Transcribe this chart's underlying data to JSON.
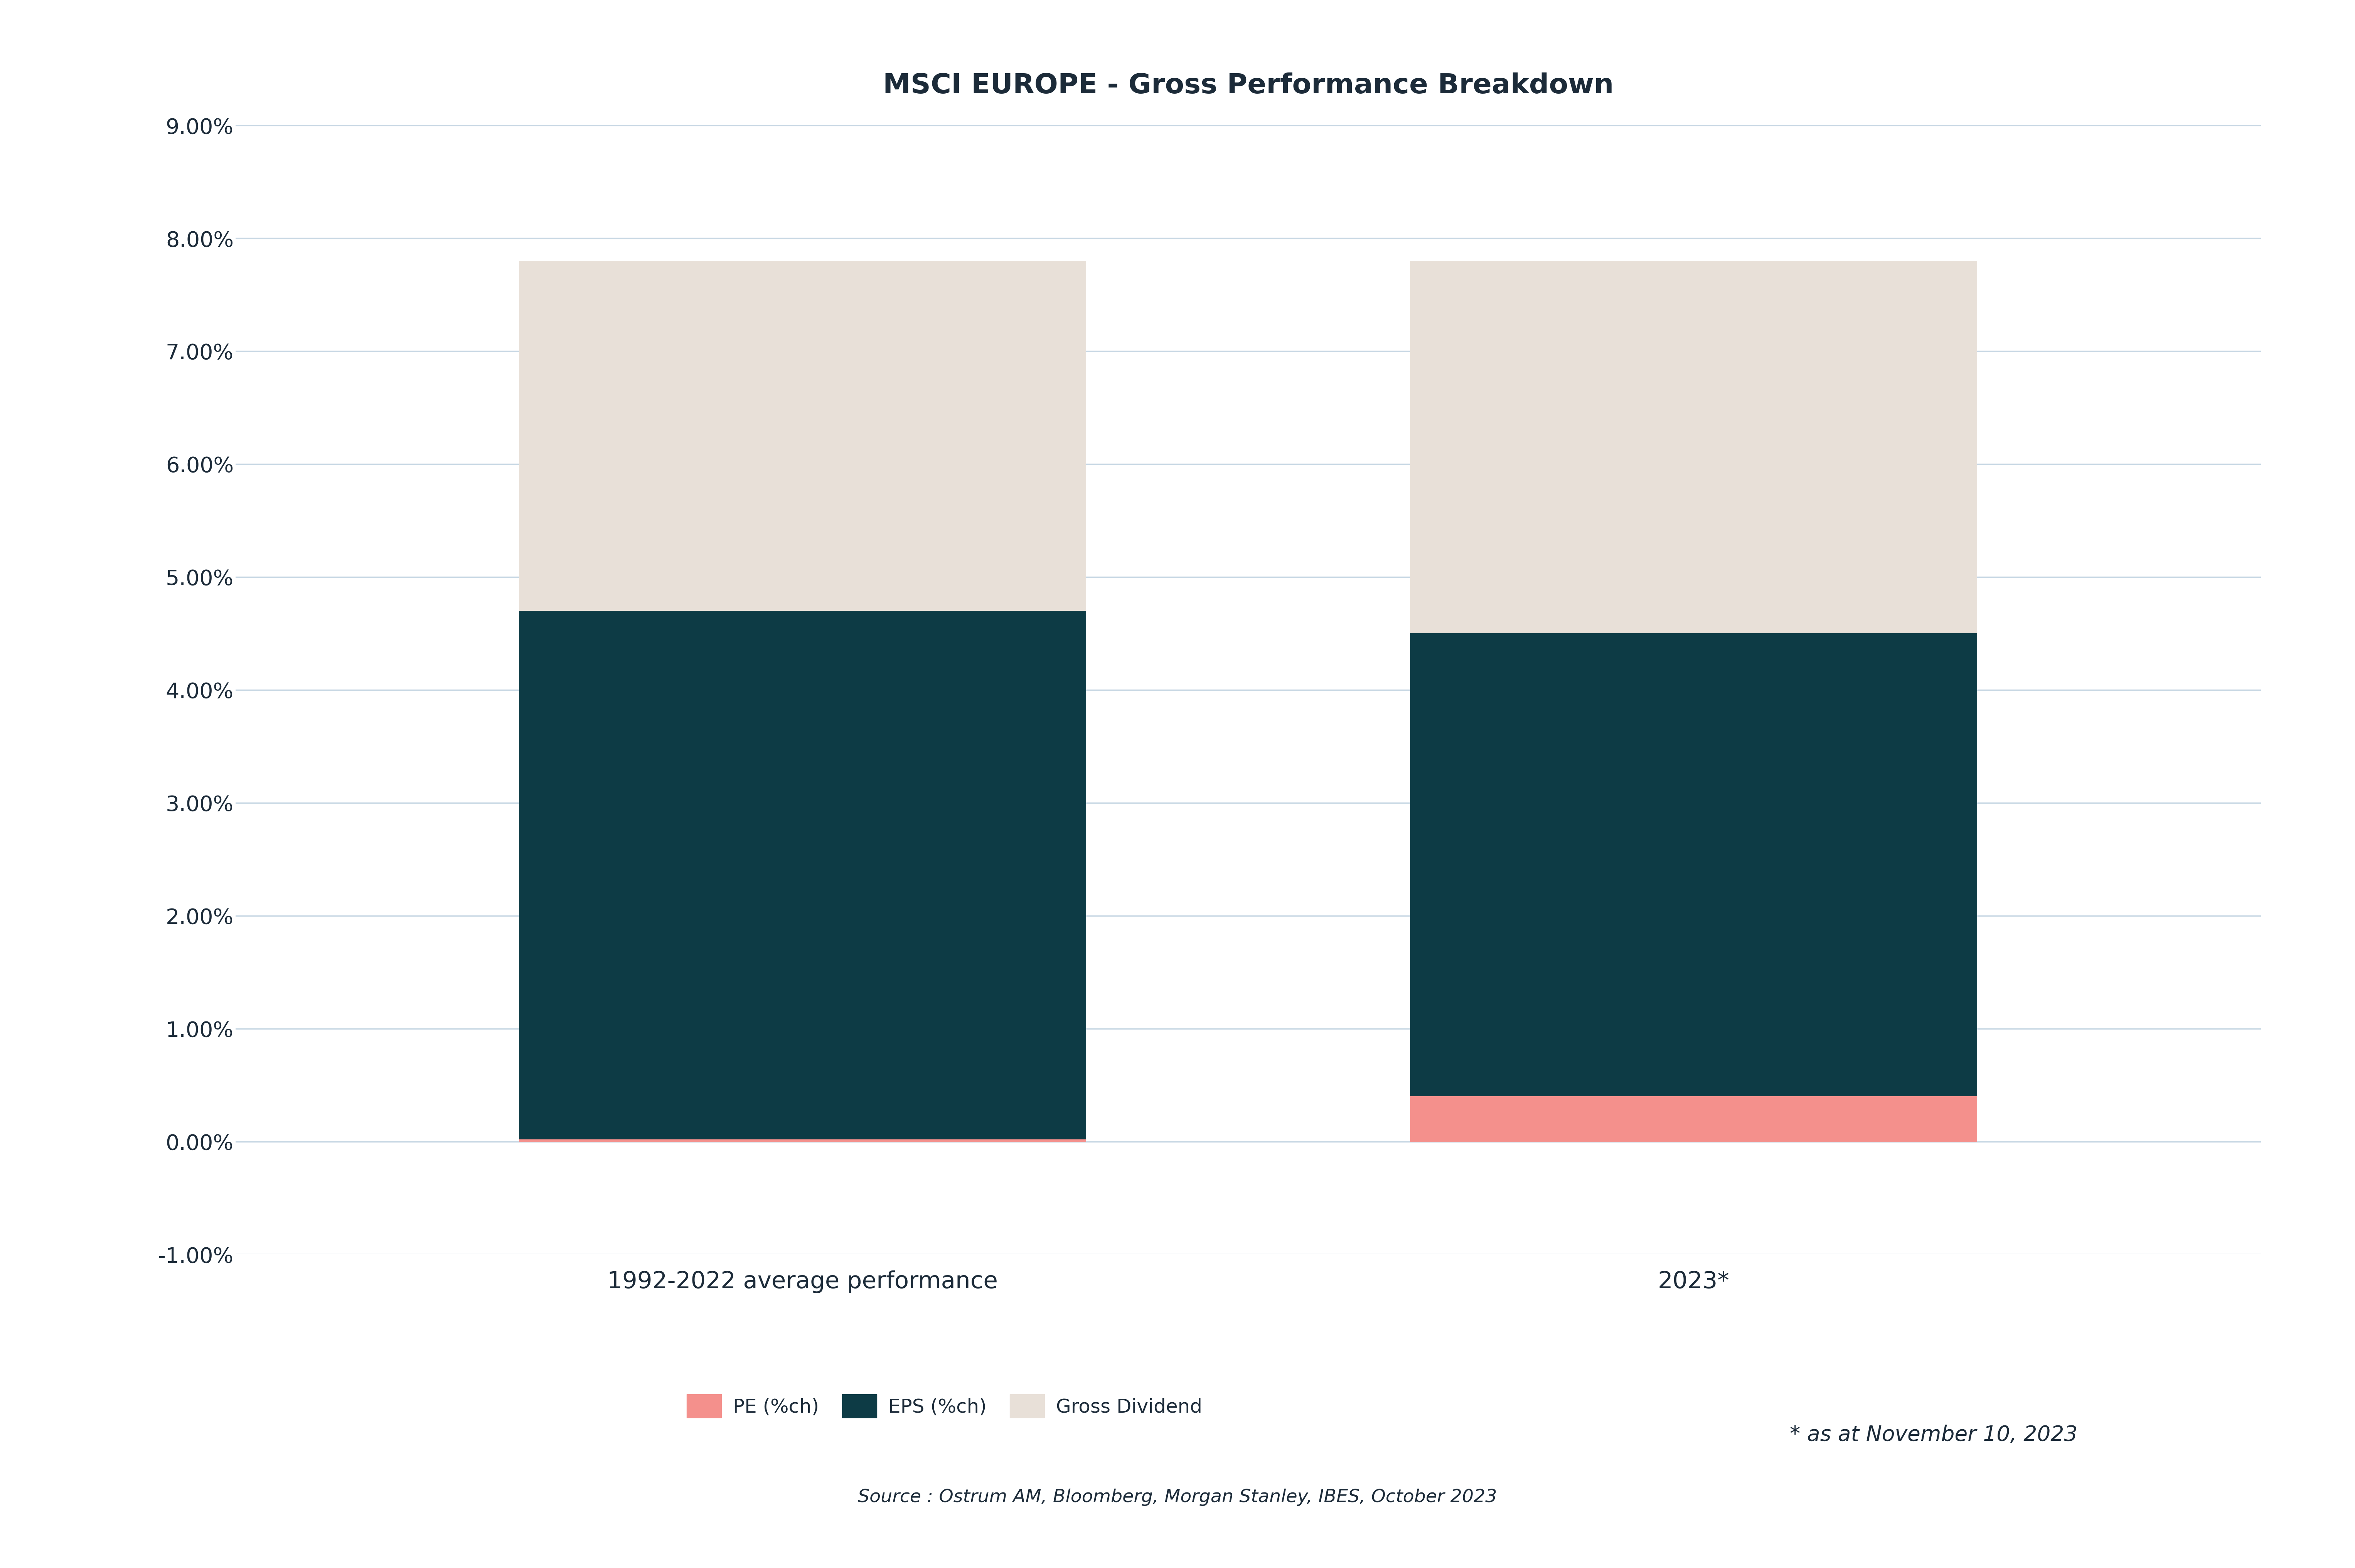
{
  "title": "MSCI EUROPE - Gross Performance Breakdown",
  "categories": [
    "1992-2022 average performance",
    "2023*"
  ],
  "segments": {
    "PE (%ch)": [
      0.02,
      0.4
    ],
    "EPS (%ch)": [
      4.68,
      4.1
    ],
    "Gross Dividend": [
      3.1,
      3.3
    ]
  },
  "colors": {
    "PE (%ch)": "#F4908C",
    "EPS (%ch)": "#0D3B45",
    "Gross Dividend": "#E8E0D8"
  },
  "ylim": [
    -0.01,
    0.09
  ],
  "yticks": [
    -0.01,
    0.0,
    0.01,
    0.02,
    0.03,
    0.04,
    0.05,
    0.06,
    0.07,
    0.08,
    0.09
  ],
  "grid_color": "#C8D8E4",
  "background_color": "#FFFFFF",
  "text_color": "#1C2B39",
  "title_fontsize": 52,
  "tick_fontsize": 40,
  "xlabel_fontsize": 44,
  "legend_fontsize": 36,
  "annotation_text": "* as at November 10, 2023",
  "source_text": "Source : Ostrum AM, Bloomberg, Morgan Stanley, IBES, October 2023",
  "bar_width": 0.28,
  "x_positions": [
    0.28,
    0.72
  ]
}
